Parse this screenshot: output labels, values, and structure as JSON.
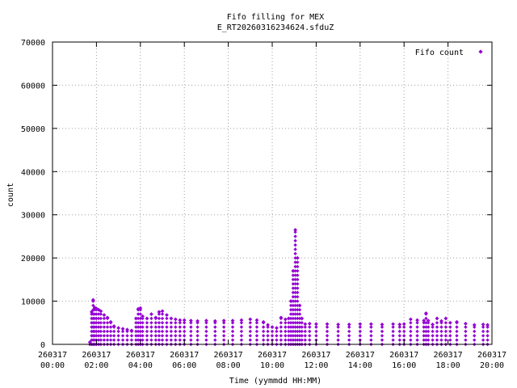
{
  "chart_data": {
    "type": "scatter",
    "title": "Fifo filling for MEX",
    "subtitle": "E_RT20260316234624.sfduZ",
    "xlabel": "Time (yymmdd HH:MM)",
    "ylabel": "count",
    "xlim_hours": [
      0,
      20
    ],
    "ylim": [
      0,
      70000
    ],
    "grid": true,
    "legend_position": "top-right",
    "yticks": [
      0,
      10000,
      20000,
      30000,
      40000,
      50000,
      60000,
      70000
    ],
    "xticks": [
      {
        "hour": 0,
        "date": "260317",
        "time": "00:00"
      },
      {
        "hour": 2,
        "date": "260317",
        "time": "02:00"
      },
      {
        "hour": 4,
        "date": "260317",
        "time": "04:00"
      },
      {
        "hour": 6,
        "date": "260317",
        "time": "06:00"
      },
      {
        "hour": 8,
        "date": "260317",
        "time": "08:00"
      },
      {
        "hour": 10,
        "date": "260317",
        "time": "10:00"
      },
      {
        "hour": 12,
        "date": "260317",
        "time": "12:00"
      },
      {
        "hour": 14,
        "date": "260317",
        "time": "14:00"
      },
      {
        "hour": 16,
        "date": "260317",
        "time": "16:00"
      },
      {
        "hour": 18,
        "date": "260317",
        "time": "18:00"
      },
      {
        "hour": 20,
        "date": "260317",
        "time": "20:00"
      }
    ],
    "series": [
      {
        "name": "Fifo count",
        "color": "#9400d3",
        "marker": "diamond",
        "x_hours": [
          1.7,
          1.78,
          1.85,
          1.92,
          2.0,
          2.1,
          2.2,
          2.35,
          2.5,
          2.65,
          2.8,
          3.0,
          3.2,
          3.4,
          3.6,
          3.8,
          3.9,
          4.0,
          4.1,
          4.3,
          4.5,
          4.7,
          4.85,
          5.0,
          5.2,
          5.4,
          5.6,
          5.8,
          6.0,
          6.3,
          6.6,
          7.0,
          7.4,
          7.8,
          8.2,
          8.6,
          9.0,
          9.3,
          9.6,
          9.8,
          10.0,
          10.2,
          10.4,
          10.6,
          10.75,
          10.85,
          10.95,
          11.05,
          11.15,
          11.25,
          11.35,
          11.5,
          11.7,
          12.0,
          12.5,
          13.0,
          13.5,
          14.0,
          14.5,
          15.0,
          15.5,
          15.8,
          16.0,
          16.3,
          16.6,
          16.9,
          17.0,
          17.1,
          17.3,
          17.5,
          17.7,
          17.9,
          18.1,
          18.4,
          18.8,
          19.2,
          19.6,
          19.8
        ],
        "y_max": [
          500,
          7500,
          10300,
          8500,
          8300,
          8000,
          7700,
          6800,
          6200,
          5200,
          4200,
          3800,
          3600,
          3400,
          3200,
          6000,
          8200,
          8400,
          6500,
          6000,
          7000,
          6200,
          7500,
          7700,
          6800,
          6000,
          5800,
          5600,
          5600,
          5500,
          5400,
          5500,
          5400,
          5500,
          5500,
          5600,
          5800,
          5600,
          5200,
          4500,
          4000,
          3800,
          6200,
          5800,
          6000,
          10000,
          17000,
          26500,
          20000,
          9000,
          6000,
          4700,
          4800,
          4700,
          4700,
          4600,
          4600,
          4700,
          4700,
          4600,
          4700,
          4600,
          4700,
          5800,
          5600,
          5500,
          7200,
          5500,
          4600,
          6000,
          5400,
          6000,
          5000,
          5200,
          4800,
          4500,
          4600,
          4500
        ]
      }
    ]
  }
}
